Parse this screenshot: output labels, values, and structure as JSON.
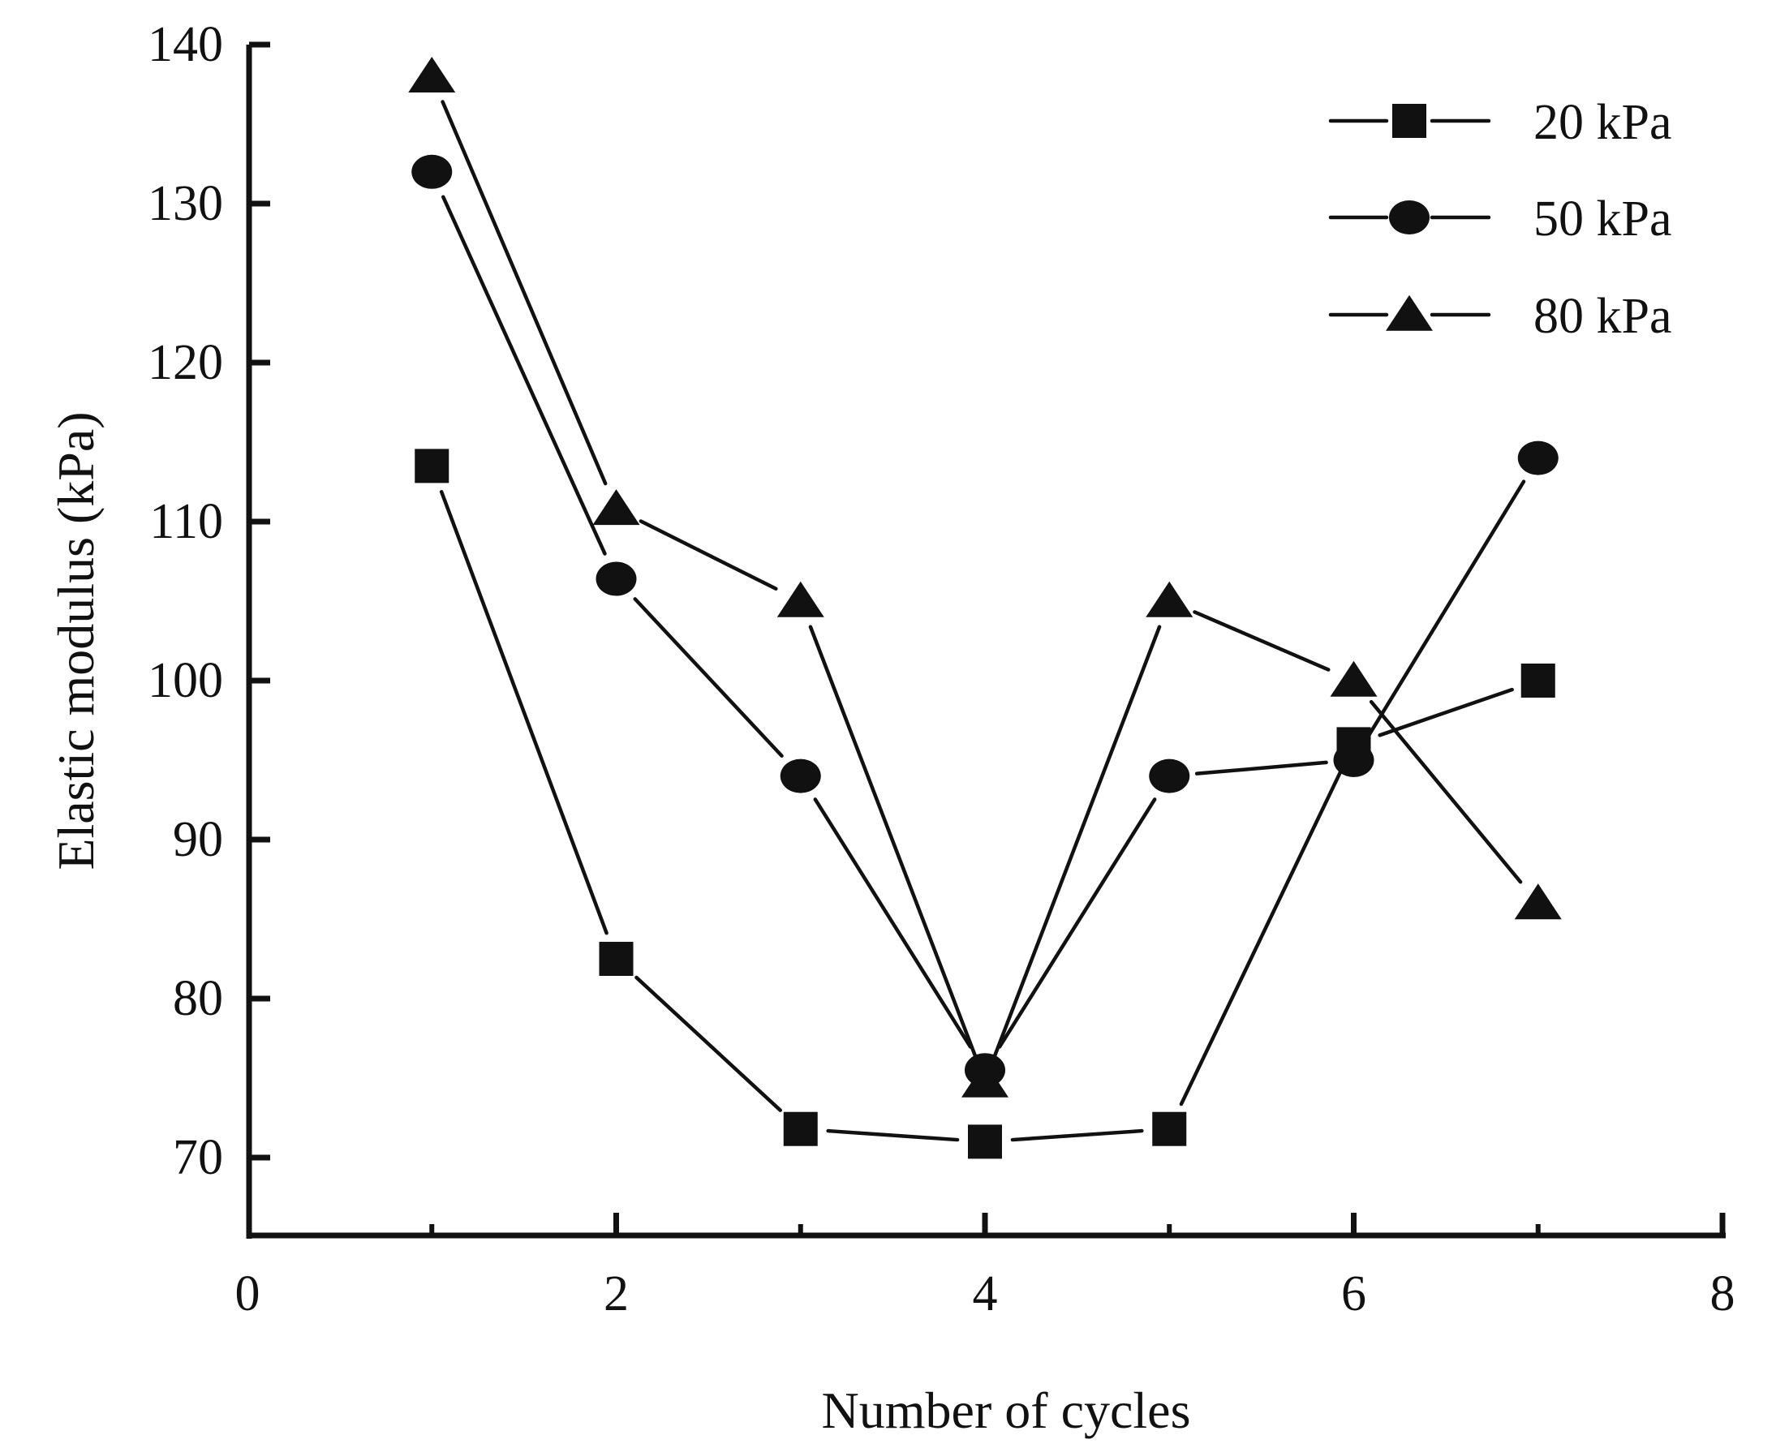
{
  "chart_data": {
    "type": "line",
    "title": "",
    "xlabel": "Number of cycles",
    "ylabel": "Elastic modulus (kPa)",
    "xlim": [
      0,
      8
    ],
    "ylim": [
      65,
      140
    ],
    "x_ticks": [
      0,
      2,
      4,
      6,
      8
    ],
    "x_tick_labels": [
      "0",
      "2",
      "4",
      "6",
      "8"
    ],
    "x_minor_ticks": [
      1,
      3,
      5,
      7
    ],
    "y_ticks": [
      70,
      80,
      90,
      100,
      110,
      120,
      130,
      140
    ],
    "y_tick_labels": [
      "70",
      "80",
      "90",
      "100",
      "110",
      "120",
      "130",
      "140"
    ],
    "grid": false,
    "legend_position": "top-right",
    "x": [
      1,
      2,
      3,
      4,
      5,
      6,
      7
    ],
    "series": [
      {
        "name": "20 kPa",
        "marker": "square",
        "color": "#111111",
        "values": [
          113.5,
          82.5,
          71.8,
          71.0,
          71.8,
          96.0,
          100.0
        ]
      },
      {
        "name": "50 kPa",
        "marker": "circle",
        "color": "#111111",
        "values": [
          132.0,
          106.4,
          94.0,
          75.5,
          94.0,
          95.0,
          114.0
        ]
      },
      {
        "name": "80 kPa",
        "marker": "triangle",
        "color": "#111111",
        "values": [
          138.0,
          110.8,
          105.0,
          74.8,
          105.0,
          100.0,
          86.0
        ]
      }
    ]
  }
}
